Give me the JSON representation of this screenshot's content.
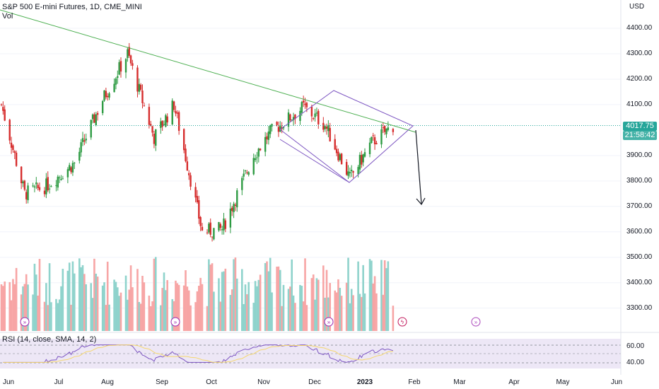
{
  "header": {
    "title": "S&P 500 E-mini Futures, 1D, CME_MINI",
    "volume_label": "Vol"
  },
  "price_axis": {
    "currency": "USD",
    "ticks": [
      "4400.00",
      "4300.00",
      "4200.00",
      "4100.00",
      "3900.00",
      "3800.00",
      "3700.00",
      "3600.00",
      "3500.00",
      "3400.00",
      "3300.00"
    ],
    "last_price": "4017.75",
    "countdown": "21:58:42"
  },
  "rsi": {
    "label": "RSI (14, close, SMA, 14, 2)",
    "ticks": [
      "60.00",
      "40.00"
    ]
  },
  "time_axis": {
    "labels": [
      "Jun",
      "Jul",
      "Aug",
      "Sep",
      "Oct",
      "Nov",
      "Dec",
      "2023",
      "Feb",
      "Mar",
      "Apr",
      "May",
      "Jun"
    ]
  },
  "colors": {
    "up": "#26a69a",
    "down": "#ef5350",
    "candle_up": "#2e9b43",
    "candle_down": "#d62d2d",
    "trendline": "#4caf50",
    "channel": "#7e57c2",
    "rsi_line": "#7e57c2",
    "rsi_ma": "#f5d76e",
    "price_tag": "#26a69a"
  },
  "chart_data": {
    "type": "candlestick",
    "y_range": [
      3250,
      4490
    ],
    "x_range": [
      "2022-06-01",
      "2023-06-01"
    ],
    "approx_closes": [
      [
        "2022-06-01",
        4100
      ],
      [
        "2022-06-15",
        3750
      ],
      [
        "2022-06-28",
        3780
      ],
      [
        "2022-07-15",
        3870
      ],
      [
        "2022-08-01",
        4120
      ],
      [
        "2022-08-16",
        4300
      ],
      [
        "2022-09-01",
        3970
      ],
      [
        "2022-09-13",
        4100
      ],
      [
        "2022-09-30",
        3600
      ],
      [
        "2022-10-12",
        3610
      ],
      [
        "2022-10-31",
        3900
      ],
      [
        "2022-11-10",
        3990
      ],
      [
        "2022-11-30",
        4090
      ],
      [
        "2022-12-13",
        4020
      ],
      [
        "2022-12-28",
        3810
      ],
      [
        "2023-01-10",
        3950
      ],
      [
        "2023-01-23",
        4017.75
      ]
    ],
    "last_close": 4017.75,
    "rsi_range": [
      30,
      70
    ]
  },
  "badges": [
    "dividends-icon",
    "dividends-icon",
    "dividends-icon",
    "earnings-icon",
    "future-event-icon"
  ]
}
